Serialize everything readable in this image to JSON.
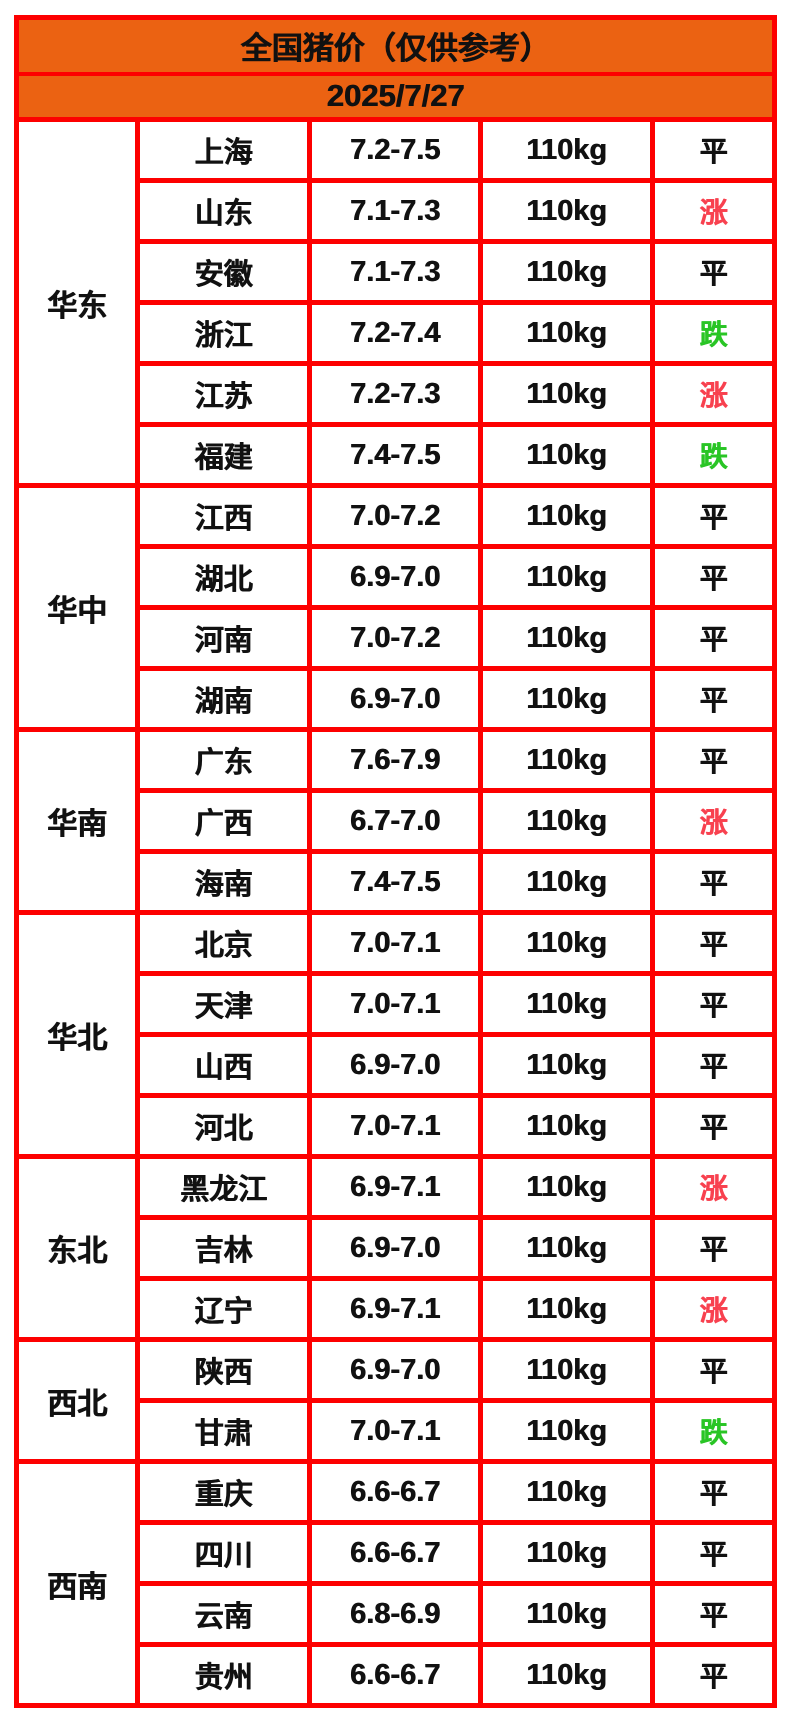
{
  "title": "全国猪价（仅供参考）",
  "date": "2025/7/27",
  "colors": {
    "header_background": "#eb6212",
    "grid_border": "#fd0000",
    "text": "#111111",
    "up": "#f8414f",
    "down": "#29c525"
  },
  "legend": {
    "up_label": "涨",
    "down_label": "跌",
    "flat_label": "平"
  },
  "regions": [
    {
      "name": "华东",
      "rows": [
        {
          "province": "上海",
          "price": "7.2-7.5",
          "weight": "110kg",
          "status": "平",
          "trend": "flat"
        },
        {
          "province": "山东",
          "price": "7.1-7.3",
          "weight": "110kg",
          "status": "涨",
          "trend": "up"
        },
        {
          "province": "安徽",
          "price": "7.1-7.3",
          "weight": "110kg",
          "status": "平",
          "trend": "flat"
        },
        {
          "province": "浙江",
          "price": "7.2-7.4",
          "weight": "110kg",
          "status": "跌",
          "trend": "down"
        },
        {
          "province": "江苏",
          "price": "7.2-7.3",
          "weight": "110kg",
          "status": "涨",
          "trend": "up"
        },
        {
          "province": "福建",
          "price": "7.4-7.5",
          "weight": "110kg",
          "status": "跌",
          "trend": "down"
        }
      ]
    },
    {
      "name": "华中",
      "rows": [
        {
          "province": "江西",
          "price": "7.0-7.2",
          "weight": "110kg",
          "status": "平",
          "trend": "flat"
        },
        {
          "province": "湖北",
          "price": "6.9-7.0",
          "weight": "110kg",
          "status": "平",
          "trend": "flat"
        },
        {
          "province": "河南",
          "price": "7.0-7.2",
          "weight": "110kg",
          "status": "平",
          "trend": "flat"
        },
        {
          "province": "湖南",
          "price": "6.9-7.0",
          "weight": "110kg",
          "status": "平",
          "trend": "flat"
        }
      ]
    },
    {
      "name": "华南",
      "rows": [
        {
          "province": "广东",
          "price": "7.6-7.9",
          "weight": "110kg",
          "status": "平",
          "trend": "flat"
        },
        {
          "province": "广西",
          "price": "6.7-7.0",
          "weight": "110kg",
          "status": "涨",
          "trend": "up"
        },
        {
          "province": "海南",
          "price": "7.4-7.5",
          "weight": "110kg",
          "status": "平",
          "trend": "flat"
        }
      ]
    },
    {
      "name": "华北",
      "rows": [
        {
          "province": "北京",
          "price": "7.0-7.1",
          "weight": "110kg",
          "status": "平",
          "trend": "flat"
        },
        {
          "province": "天津",
          "price": "7.0-7.1",
          "weight": "110kg",
          "status": "平",
          "trend": "flat"
        },
        {
          "province": "山西",
          "price": "6.9-7.0",
          "weight": "110kg",
          "status": "平",
          "trend": "flat"
        },
        {
          "province": "河北",
          "price": "7.0-7.1",
          "weight": "110kg",
          "status": "平",
          "trend": "flat"
        }
      ]
    },
    {
      "name": "东北",
      "rows": [
        {
          "province": "黑龙江",
          "price": "6.9-7.1",
          "weight": "110kg",
          "status": "涨",
          "trend": "up"
        },
        {
          "province": "吉林",
          "price": "6.9-7.0",
          "weight": "110kg",
          "status": "平",
          "trend": "flat"
        },
        {
          "province": "辽宁",
          "price": "6.9-7.1",
          "weight": "110kg",
          "status": "涨",
          "trend": "up"
        }
      ]
    },
    {
      "name": "西北",
      "rows": [
        {
          "province": "陕西",
          "price": "6.9-7.0",
          "weight": "110kg",
          "status": "平",
          "trend": "flat"
        },
        {
          "province": "甘肃",
          "price": "7.0-7.1",
          "weight": "110kg",
          "status": "跌",
          "trend": "down"
        }
      ]
    },
    {
      "name": "西南",
      "rows": [
        {
          "province": "重庆",
          "price": "6.6-6.7",
          "weight": "110kg",
          "status": "平",
          "trend": "flat"
        },
        {
          "province": "四川",
          "price": "6.6-6.7",
          "weight": "110kg",
          "status": "平",
          "trend": "flat"
        },
        {
          "province": "云南",
          "price": "6.8-6.9",
          "weight": "110kg",
          "status": "平",
          "trend": "flat"
        },
        {
          "province": "贵州",
          "price": "6.6-6.7",
          "weight": "110kg",
          "status": "平",
          "trend": "flat"
        }
      ]
    }
  ],
  "chart_data": {
    "type": "table",
    "title": "全国猪价（仅供参考）",
    "subtitle": "2025/7/27",
    "columns": [
      "region",
      "province",
      "price_range_yuan_per_jin",
      "weight",
      "trend"
    ],
    "rows": [
      [
        "华东",
        "上海",
        "7.2-7.5",
        "110kg",
        "平"
      ],
      [
        "华东",
        "山东",
        "7.1-7.3",
        "110kg",
        "涨"
      ],
      [
        "华东",
        "安徽",
        "7.1-7.3",
        "110kg",
        "平"
      ],
      [
        "华东",
        "浙江",
        "7.2-7.4",
        "110kg",
        "跌"
      ],
      [
        "华东",
        "江苏",
        "7.2-7.3",
        "110kg",
        "涨"
      ],
      [
        "华东",
        "福建",
        "7.4-7.5",
        "110kg",
        "跌"
      ],
      [
        "华中",
        "江西",
        "7.0-7.2",
        "110kg",
        "平"
      ],
      [
        "华中",
        "湖北",
        "6.9-7.0",
        "110kg",
        "平"
      ],
      [
        "华中",
        "河南",
        "7.0-7.2",
        "110kg",
        "平"
      ],
      [
        "华中",
        "湖南",
        "6.9-7.0",
        "110kg",
        "平"
      ],
      [
        "华南",
        "广东",
        "7.6-7.9",
        "110kg",
        "平"
      ],
      [
        "华南",
        "广西",
        "6.7-7.0",
        "110kg",
        "涨"
      ],
      [
        "华南",
        "海南",
        "7.4-7.5",
        "110kg",
        "平"
      ],
      [
        "华北",
        "北京",
        "7.0-7.1",
        "110kg",
        "平"
      ],
      [
        "华北",
        "天津",
        "7.0-7.1",
        "110kg",
        "平"
      ],
      [
        "华北",
        "山西",
        "6.9-7.0",
        "110kg",
        "平"
      ],
      [
        "华北",
        "河北",
        "7.0-7.1",
        "110kg",
        "平"
      ],
      [
        "东北",
        "黑龙江",
        "6.9-7.1",
        "110kg",
        "涨"
      ],
      [
        "东北",
        "吉林",
        "6.9-7.0",
        "110kg",
        "平"
      ],
      [
        "东北",
        "辽宁",
        "6.9-7.1",
        "110kg",
        "涨"
      ],
      [
        "西北",
        "陕西",
        "6.9-7.0",
        "110kg",
        "平"
      ],
      [
        "西北",
        "甘肃",
        "7.0-7.1",
        "110kg",
        "跌"
      ],
      [
        "西南",
        "重庆",
        "6.6-6.7",
        "110kg",
        "平"
      ],
      [
        "西南",
        "四川",
        "6.6-6.7",
        "110kg",
        "平"
      ],
      [
        "西南",
        "云南",
        "6.8-6.9",
        "110kg",
        "平"
      ],
      [
        "西南",
        "贵州",
        "6.6-6.7",
        "110kg",
        "平"
      ]
    ]
  }
}
